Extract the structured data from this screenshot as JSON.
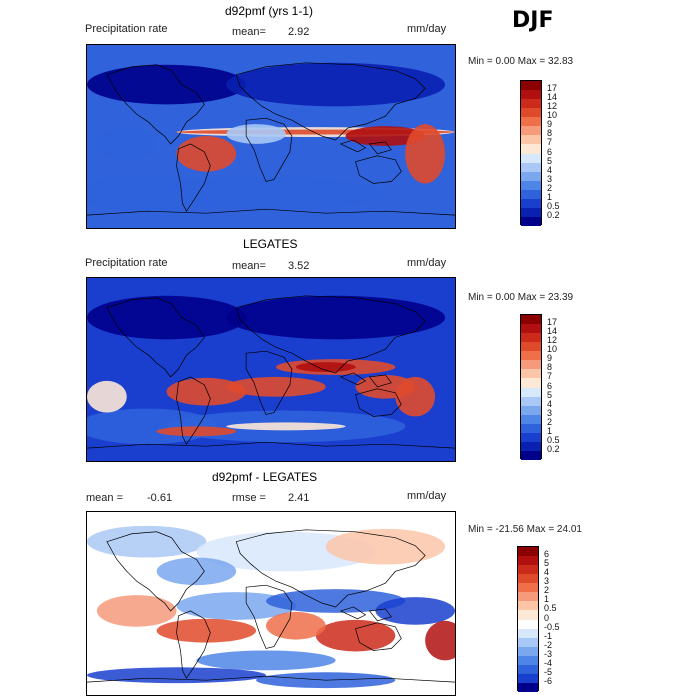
{
  "season": "DJF",
  "panels": [
    {
      "title": "d92pmf (yrs 1-1)",
      "variable": "Precipitation rate",
      "mean_label": "mean=",
      "mean_value": "2.92",
      "units": "mm/day",
      "minmax": "Min =    0.00 Max =   32.83",
      "colorbar": {
        "labels": [
          "17",
          "14",
          "12",
          "10",
          "9",
          "8",
          "7",
          "6",
          "5",
          "4",
          "3",
          "2",
          "1",
          "0.5",
          "0.2"
        ],
        "colors": [
          "#8b0000",
          "#b01010",
          "#cc2a1a",
          "#e04a2c",
          "#ee6f4a",
          "#f59a7a",
          "#fbc6a8",
          "#fde8d6",
          "#d8e8fb",
          "#a9c8f5",
          "#7aa7ee",
          "#4f85e6",
          "#2f62db",
          "#1a3fcf",
          "#0a20b0",
          "#00008b"
        ]
      },
      "map_style": "model"
    },
    {
      "title": "LEGATES",
      "variable": "Precipitation rate",
      "mean_label": "mean=",
      "mean_value": "3.52",
      "units": "mm/day",
      "minmax": "Min =    0.00 Max =   23.39",
      "colorbar": {
        "labels": [
          "17",
          "14",
          "12",
          "10",
          "9",
          "8",
          "7",
          "6",
          "5",
          "4",
          "3",
          "2",
          "1",
          "0.5",
          "0.2"
        ],
        "colors": [
          "#8b0000",
          "#b01010",
          "#cc2a1a",
          "#e04a2c",
          "#ee6f4a",
          "#f59a7a",
          "#fbc6a8",
          "#fde8d6",
          "#d8e8fb",
          "#a9c8f5",
          "#7aa7ee",
          "#4f85e6",
          "#2f62db",
          "#1a3fcf",
          "#0a20b0",
          "#00008b"
        ]
      },
      "map_style": "obs"
    },
    {
      "title": "d92pmf - LEGATES",
      "variable": "",
      "mean_label": "mean =",
      "mean_value": "-0.61",
      "rmse_label": "rmse =",
      "rmse_value": "2.41",
      "units": "mm/day",
      "minmax": "Min =  -21.56 Max =   24.01",
      "colorbar": {
        "labels": [
          "6",
          "5",
          "4",
          "3",
          "2",
          "1",
          "0.5",
          "0",
          "-0.5",
          "-1",
          "-2",
          "-3",
          "-4",
          "-5",
          "-6"
        ],
        "colors": [
          "#8b0000",
          "#b01010",
          "#cc2a1a",
          "#e04a2c",
          "#ee6f4a",
          "#f59a7a",
          "#fbc6a8",
          "#fde8d6",
          "#ffffff",
          "#d8e8fb",
          "#a9c8f5",
          "#7aa7ee",
          "#4f85e6",
          "#2f62db",
          "#1a3fcf",
          "#00008b"
        ]
      },
      "map_style": "diff"
    }
  ]
}
